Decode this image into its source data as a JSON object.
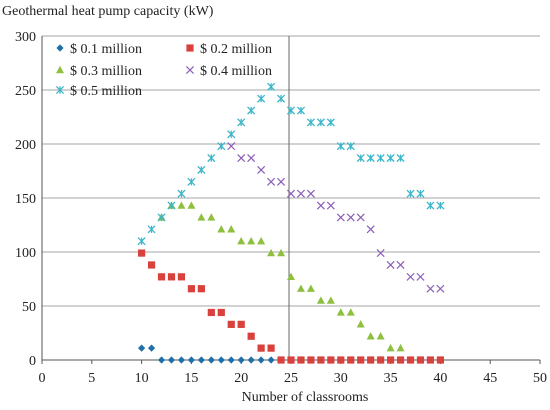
{
  "chart_data": {
    "type": "scatter",
    "title": "",
    "ylabel": "Geothermal heat pump capacity (kW)",
    "xlabel": "Number of classrooms",
    "xlim": [
      0,
      50
    ],
    "ylim": [
      0,
      300
    ],
    "xticks": [
      0,
      5,
      10,
      15,
      20,
      25,
      30,
      35,
      40,
      45,
      50
    ],
    "yticks": [
      0,
      50,
      100,
      150,
      200,
      250,
      300
    ],
    "grid": "horizontal",
    "reference_line_x": 24.8,
    "legend": "top-left, two columns",
    "series": [
      {
        "name": "$ 0.1 million",
        "marker": "diamond",
        "color": "#1f6fa8",
        "x": [
          10,
          11,
          12,
          13,
          14,
          15,
          16,
          17,
          18,
          19,
          20,
          21,
          22,
          23
        ],
        "y": [
          11,
          11,
          0,
          0,
          0,
          0,
          0,
          0,
          0,
          0,
          0,
          0,
          0,
          0
        ]
      },
      {
        "name": "$ 0.2 million",
        "marker": "square",
        "color": "#d9413c",
        "x": [
          10,
          11,
          12,
          13,
          14,
          15,
          16,
          17,
          18,
          19,
          20,
          21,
          22,
          23,
          24,
          25,
          26,
          27,
          28,
          29,
          30,
          31,
          32,
          33,
          34,
          35,
          36,
          37,
          38,
          39,
          40
        ],
        "y": [
          99,
          88,
          77,
          77,
          77,
          66,
          66,
          44,
          44,
          33,
          33,
          22,
          11,
          11,
          0,
          0,
          0,
          0,
          0,
          0,
          0,
          0,
          0,
          0,
          0,
          0,
          0,
          0,
          0,
          0,
          0
        ]
      },
      {
        "name": "$ 0.3 million",
        "marker": "triangle",
        "color": "#8fbf3f",
        "x": [
          12,
          13,
          14,
          15,
          16,
          17,
          18,
          19,
          20,
          21,
          22,
          23,
          24,
          25,
          26,
          27,
          28,
          29,
          30,
          31,
          32,
          33,
          34,
          35,
          36
        ],
        "y": [
          132,
          143,
          143,
          143,
          132,
          132,
          121,
          121,
          110,
          110,
          110,
          99,
          99,
          77,
          66,
          66,
          55,
          55,
          44,
          44,
          33,
          22,
          22,
          11,
          11
        ]
      },
      {
        "name": "$ 0.4 million",
        "marker": "x",
        "color": "#8b5fb8",
        "x": [
          19,
          20,
          21,
          22,
          23,
          24,
          25,
          26,
          27,
          28,
          29,
          30,
          31,
          32,
          33,
          34,
          35,
          36,
          37,
          38,
          39,
          40
        ],
        "y": [
          198,
          187,
          187,
          176,
          165,
          165,
          154,
          154,
          154,
          143,
          143,
          132,
          132,
          132,
          121,
          99,
          88,
          88,
          77,
          77,
          66,
          66
        ]
      },
      {
        "name": "$ 0.5 million",
        "marker": "asterisk",
        "color": "#3cb6c9",
        "x": [
          10,
          11,
          12,
          13,
          14,
          15,
          16,
          17,
          18,
          19,
          20,
          21,
          22,
          23,
          24,
          25,
          26,
          27,
          28,
          29,
          30,
          31,
          32,
          33,
          34,
          35,
          36,
          37,
          38,
          39,
          40
        ],
        "y": [
          110,
          121,
          132,
          143,
          154,
          165,
          176,
          187,
          198,
          209,
          220,
          231,
          242,
          253,
          242,
          231,
          231,
          220,
          220,
          220,
          198,
          198,
          187,
          187,
          187,
          187,
          187,
          154,
          154,
          143,
          143
        ]
      }
    ]
  }
}
